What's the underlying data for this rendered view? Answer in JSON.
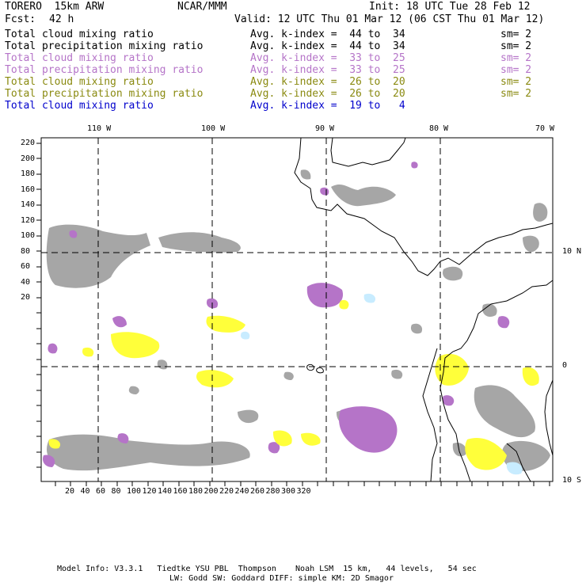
{
  "header": {
    "model": "TORERO  15km ARW",
    "org": "NCAR/MMM",
    "init": "Init: 18 UTC Tue 28 Feb 12",
    "fcst_label": "Fcst:",
    "fcst_value": "42 h",
    "valid": "Valid: 12 UTC Thu 01 Mar 12 (06 CST Thu 01 Mar 12)"
  },
  "legend": [
    {
      "field": "Total cloud mixing ratio",
      "kindex": "Avg. k-index =  44 to  34",
      "sm": "sm= 2",
      "color": "#000000"
    },
    {
      "field": "Total precipitation mixing ratio",
      "kindex": "Avg. k-index =  44 to  34",
      "sm": "sm= 2",
      "color": "#000000"
    },
    {
      "field": "Total cloud mixing ratio",
      "kindex": "Avg. k-index =  33 to  25",
      "sm": "sm= 2",
      "color": "#b574c8"
    },
    {
      "field": "Total precipitation mixing ratio",
      "kindex": "Avg. k-index =  33 to  25",
      "sm": "sm= 2",
      "color": "#b574c8"
    },
    {
      "field": "Total cloud mixing ratio",
      "kindex": "Avg. k-index =  26 to  20",
      "sm": "sm= 2",
      "color": "#8a8a10"
    },
    {
      "field": "Total precipitation mixing ratio",
      "kindex": "Avg. k-index =  26 to  20",
      "sm": "sm= 2",
      "color": "#8a8a10"
    },
    {
      "field": "Total cloud mixing ratio",
      "kindex": "Avg. k-index =  19 to   4",
      "sm": "",
      "color": "#0000cc"
    }
  ],
  "axes": {
    "top_lon": [
      "110 W",
      "100 W",
      "90 W",
      "80 W",
      "70 W"
    ],
    "right_lat": [
      "10 N",
      "0",
      "10 S"
    ],
    "left_y": [
      "220",
      "200",
      "180",
      "160",
      "140",
      "120",
      "100",
      "80",
      "60",
      "40",
      "20"
    ],
    "bottom_x": [
      "20",
      "40",
      "60",
      "80",
      "100",
      "120",
      "140",
      "160",
      "180",
      "200",
      "220",
      "240",
      "260",
      "280",
      "300",
      "320"
    ]
  },
  "colors": {
    "gray": "#a6a6a6",
    "purple": "#b574c8",
    "yellow": "#ffff3a",
    "light_blue": "#c8ecff"
  },
  "footer": {
    "line1": "Model Info: V3.3.1   Tiedtke YSU PBL  Thompson    Noah LSM  15 km,   44 levels,   54 sec",
    "line2": "LW: Godd SW: Goddard DIFF: simple KM: 2D Smagor"
  }
}
